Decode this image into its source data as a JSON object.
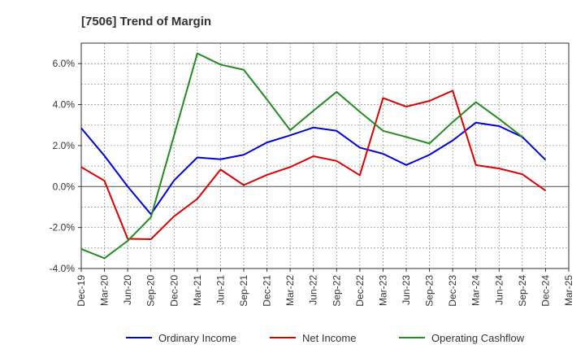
{
  "chart_data": {
    "type": "line",
    "title": "[7506]  Trend of Margin",
    "xlabel": "",
    "ylabel": "",
    "ylim": [
      -4.0,
      7.0
    ],
    "yticks": [
      -4.0,
      -2.0,
      0.0,
      2.0,
      4.0,
      6.0
    ],
    "ytick_labels": [
      "-4.0%",
      "-2.0%",
      "0.0%",
      "2.0%",
      "4.0%",
      "6.0%"
    ],
    "categories": [
      "Dec-19",
      "Mar-20",
      "Jun-20",
      "Sep-20",
      "Dec-20",
      "Mar-21",
      "Jun-21",
      "Sep-21",
      "Dec-21",
      "Mar-22",
      "Jun-22",
      "Sep-22",
      "Dec-22",
      "Mar-23",
      "Jun-23",
      "Sep-23",
      "Dec-23",
      "Mar-24",
      "Jun-24",
      "Sep-24",
      "Dec-24",
      "Mar-25"
    ],
    "grid": true,
    "legend_position": "bottom",
    "series": [
      {
        "name": "Ordinary Income",
        "color": "#0000dd",
        "values": [
          2.85,
          1.5,
          0.0,
          -1.35,
          0.3,
          1.42,
          1.33,
          1.55,
          2.15,
          2.5,
          2.88,
          2.72,
          1.9,
          1.6,
          1.05,
          1.55,
          2.25,
          3.12,
          2.95,
          2.42,
          1.3,
          null
        ]
      },
      {
        "name": "Net Income",
        "color": "#dd0000",
        "values": [
          0.95,
          0.28,
          -2.55,
          -2.57,
          -1.45,
          -0.6,
          0.83,
          0.07,
          0.57,
          0.95,
          1.48,
          1.25,
          0.55,
          4.32,
          3.9,
          4.18,
          4.68,
          1.05,
          0.88,
          0.6,
          -0.2,
          null
        ]
      },
      {
        "name": "Operating Cashflow",
        "color": "#228b22",
        "values": [
          -3.05,
          -3.5,
          -2.65,
          -1.5,
          2.5,
          6.5,
          5.95,
          5.7,
          4.25,
          2.75,
          3.7,
          4.62,
          3.65,
          2.72,
          2.42,
          2.1,
          3.15,
          4.12,
          3.3,
          2.42,
          null,
          null
        ]
      }
    ]
  }
}
